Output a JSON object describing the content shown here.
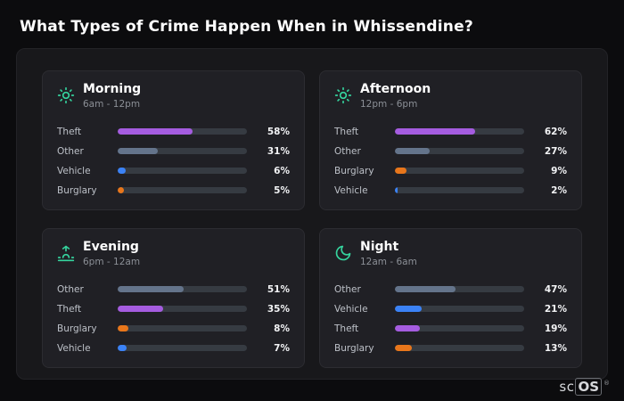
{
  "page": {
    "title": "What Types of Crime Happen When in Whissendine?"
  },
  "brand": {
    "prefix": "sc",
    "suffix": "OS",
    "registered": "®"
  },
  "colors": {
    "theft": "#a55ce0",
    "other": "#64748b",
    "vehicle": "#3b82f6",
    "burglary": "#e8761b",
    "accent": "#35d49e"
  },
  "chart_data": [
    {
      "type": "bar",
      "title": "Morning",
      "subtitle": "6am - 12pm",
      "icon": "sun-icon",
      "unit": "%",
      "xlim": [
        0,
        100
      ],
      "categories": [
        "Theft",
        "Other",
        "Vehicle",
        "Burglary"
      ],
      "values": [
        58,
        31,
        6,
        5
      ]
    },
    {
      "type": "bar",
      "title": "Afternoon",
      "subtitle": "12pm - 6pm",
      "icon": "sun-icon",
      "unit": "%",
      "xlim": [
        0,
        100
      ],
      "categories": [
        "Theft",
        "Other",
        "Burglary",
        "Vehicle"
      ],
      "values": [
        62,
        27,
        9,
        2
      ]
    },
    {
      "type": "bar",
      "title": "Evening",
      "subtitle": "6pm - 12am",
      "icon": "sunset-icon",
      "unit": "%",
      "xlim": [
        0,
        100
      ],
      "categories": [
        "Other",
        "Theft",
        "Burglary",
        "Vehicle"
      ],
      "values": [
        51,
        35,
        8,
        7
      ]
    },
    {
      "type": "bar",
      "title": "Night",
      "subtitle": "12am - 6am",
      "icon": "moon-icon",
      "unit": "%",
      "xlim": [
        0,
        100
      ],
      "categories": [
        "Other",
        "Vehicle",
        "Theft",
        "Burglary"
      ],
      "values": [
        47,
        21,
        19,
        13
      ]
    }
  ]
}
